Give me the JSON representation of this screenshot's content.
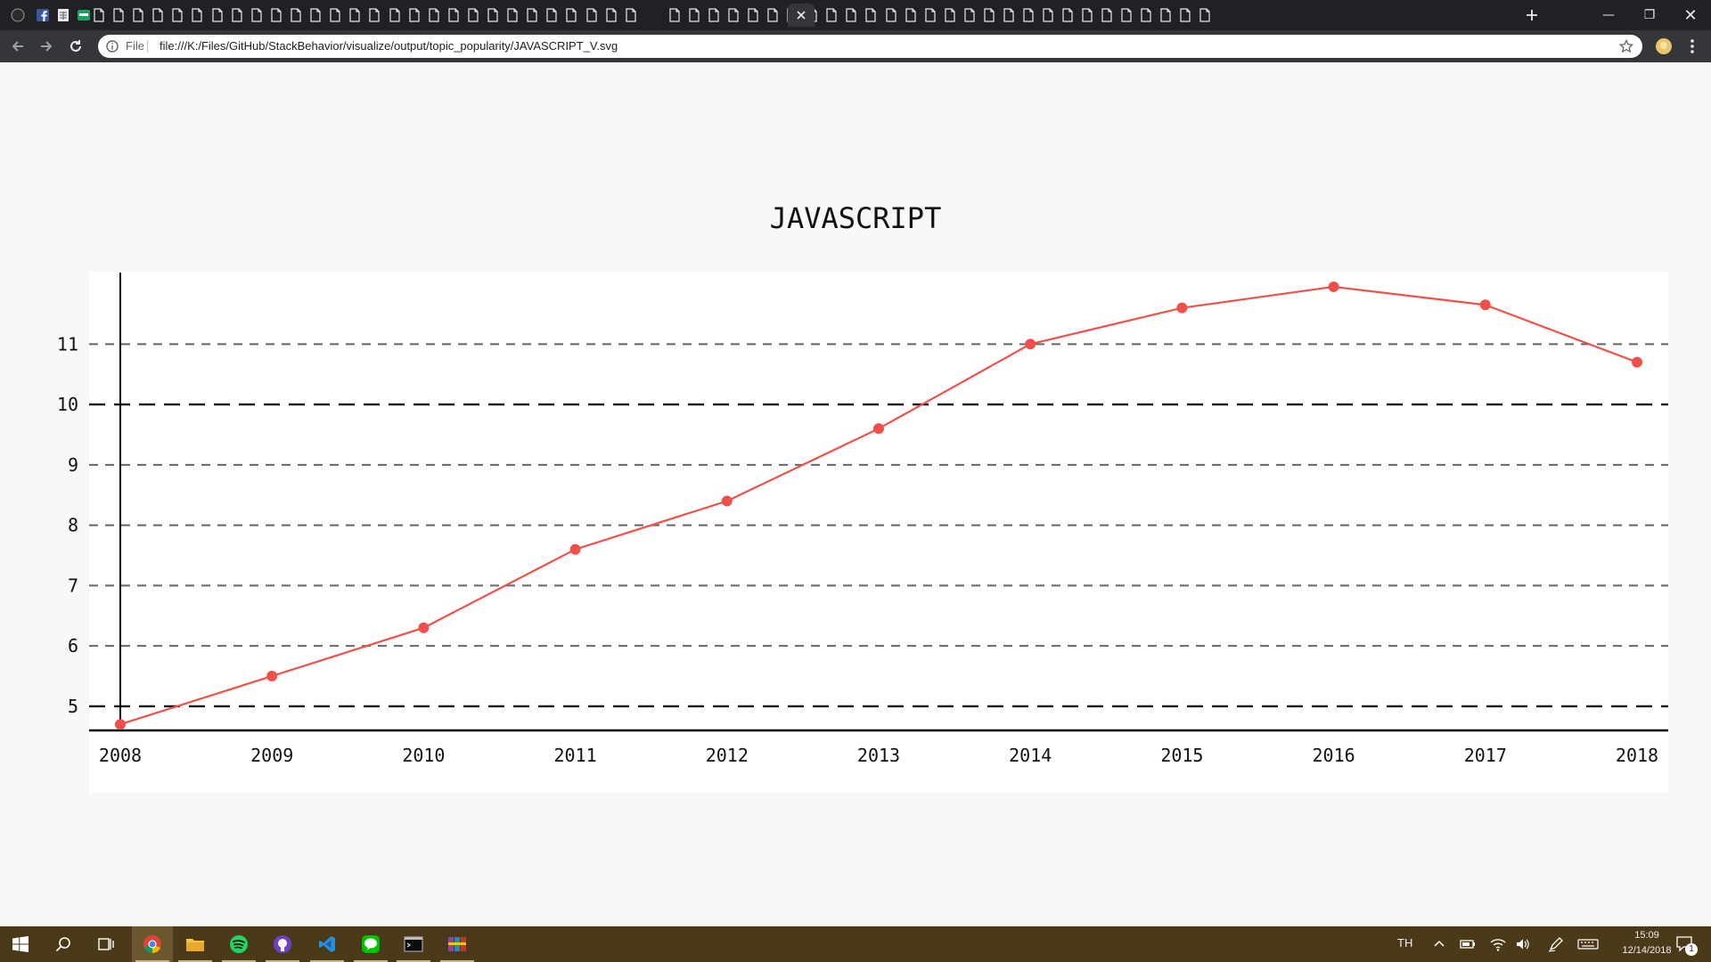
{
  "browser": {
    "url_scheme_label": "File",
    "url": "file:///K:/Files/GitHub/StackBehavior/visualize/output/topic_popularity/JAVASCRIPT_V.svg",
    "colors": {
      "tabstrip": "#202124",
      "toolbar": "#35363a",
      "omnibox": "#ffffff"
    }
  },
  "chart_data": {
    "type": "line",
    "title": "JAVASCRIPT",
    "xlabel": "",
    "ylabel": "",
    "categories": [
      "2008",
      "2009",
      "2010",
      "2011",
      "2012",
      "2013",
      "2014",
      "2015",
      "2016",
      "2017",
      "2018"
    ],
    "series": [
      {
        "values": [
          4.7,
          5.5,
          6.3,
          7.6,
          8.4,
          9.6,
          11.0,
          11.6,
          11.95,
          11.65,
          10.7
        ],
        "color": "#f0504a"
      }
    ],
    "yticks": [
      5,
      6,
      7,
      8,
      9,
      10,
      11
    ],
    "ylim": [
      4.6,
      12.2
    ],
    "grid": true,
    "major_grid_values": [
      5,
      10
    ]
  },
  "taskbar": {
    "apps": [
      "start-icon",
      "search-icon",
      "task-view-icon",
      "chrome-icon",
      "file-explorer-icon",
      "spotify-icon",
      "github-desktop-icon",
      "vscode-icon",
      "line-icon",
      "terminal-icon",
      "winrar-icon"
    ],
    "language": "TH",
    "time": "15:09",
    "date": "12/14/2018",
    "notifications": "1"
  }
}
